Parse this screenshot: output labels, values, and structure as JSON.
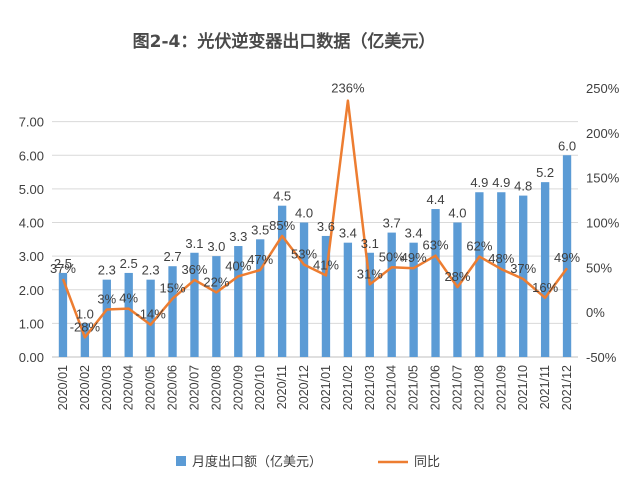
{
  "chart_data": {
    "type": "bar",
    "title": "图2-4：光伏逆变器出口数据（亿美元）",
    "categories": [
      "2020/01",
      "2020/02",
      "2020/03",
      "2020/04",
      "2020/05",
      "2020/06",
      "2020/07",
      "2020/08",
      "2020/09",
      "2020/10",
      "2020/11",
      "2020/12",
      "2021/01",
      "2021/02",
      "2021/03",
      "2021/04",
      "2021/05",
      "2021/06",
      "2021/07",
      "2021/08",
      "2021/09",
      "2021/10",
      "2021/11",
      "2021/12"
    ],
    "series": [
      {
        "name": "月度出口额（亿美元）",
        "type": "bar",
        "axis": "left",
        "color": "#5b9bd5",
        "values": [
          2.5,
          1.0,
          2.3,
          2.5,
          2.3,
          2.7,
          3.1,
          3.0,
          3.3,
          3.5,
          4.5,
          4.0,
          3.6,
          3.4,
          3.1,
          3.7,
          3.4,
          4.4,
          4.0,
          4.9,
          4.9,
          4.8,
          5.2,
          6.0
        ],
        "labels": [
          "2.5",
          "1.0",
          "2.3",
          "2.5",
          "2.3",
          "2.7",
          "3.1",
          "3.0",
          "3.3",
          "3.5",
          "4.5",
          "4.0",
          "3.6",
          "3.4",
          "3.1",
          "3.7",
          "3.4",
          "4.4",
          "4.0",
          "4.9",
          "4.9",
          "4.8",
          "5.2",
          "6.0"
        ]
      },
      {
        "name": "同比",
        "type": "line",
        "axis": "right",
        "color": "#ed7d31",
        "values": [
          37,
          -28,
          3,
          4,
          -14,
          15,
          36,
          22,
          40,
          47,
          85,
          53,
          41,
          236,
          31,
          50,
          49,
          63,
          28,
          62,
          48,
          37,
          16,
          49
        ],
        "labels": [
          "37%",
          "-28%",
          "3%",
          "4%",
          "-14%",
          "15%",
          "36%",
          "22%",
          "40%",
          "47%",
          "85%",
          "53%",
          "41%",
          "236%",
          "31%",
          "50%",
          "49%",
          "63%",
          "28%",
          "62%",
          "48%",
          "37%",
          "16%",
          "49%"
        ]
      }
    ],
    "y_left": {
      "min": 0,
      "max": 8,
      "ticks": [
        "0.00",
        "1.00",
        "2.00",
        "3.00",
        "4.00",
        "5.00",
        "6.00",
        "7.00"
      ]
    },
    "y_right": {
      "min": -50,
      "max": 250,
      "ticks": [
        "-50%",
        "0%",
        "50%",
        "100%",
        "150%",
        "200%",
        "250%"
      ]
    },
    "legend_position": "bottom",
    "grid": true
  }
}
